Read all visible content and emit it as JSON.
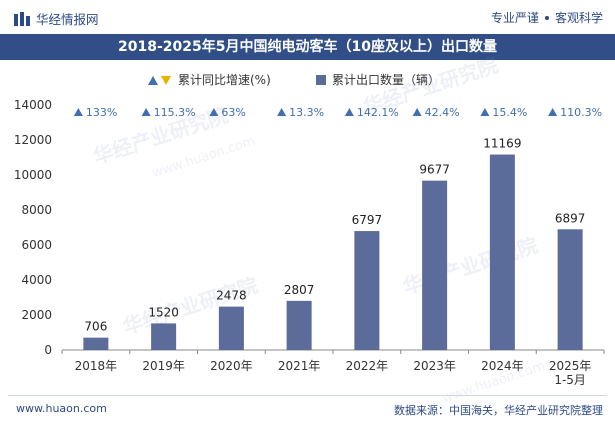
{
  "header": {
    "brand": "华经情报网",
    "tagline_left": "专业严谨",
    "tagline_right": "客观科学"
  },
  "title": "2018-2025年5月中国纯电动客车（10座及以上）出口数量",
  "legend": {
    "growth_label": "累计同比增速(%)",
    "volume_label": "累计出口数量（辆）"
  },
  "footer": {
    "website": "www.huaon.com",
    "source": "数据来源：中国海关，华经产业研究院整理"
  },
  "watermark": {
    "text": "华经产业研究院",
    "url": "www.huaon.com"
  },
  "colors": {
    "bar": "#5b6b9a",
    "title_bg": "#314f86",
    "growth_up": "#3f6fb0",
    "growth_down": "#e8b400",
    "axis": "#888888"
  },
  "chart_data": {
    "type": "bar",
    "categories": [
      "2018年",
      "2019年",
      "2020年",
      "2021年",
      "2022年",
      "2023年",
      "2024年",
      "2025年\n1-5月"
    ],
    "series": [
      {
        "name": "累计出口数量（辆）",
        "values": [
          706,
          1520,
          2478,
          2807,
          6797,
          9677,
          11169,
          6897
        ],
        "labels": [
          "706",
          "1520",
          "2478",
          "2807",
          "6797",
          "9677",
          "11169",
          "6897"
        ]
      },
      {
        "name": "累计同比增速(%)",
        "values": [
          133,
          115.3,
          63,
          13.3,
          142.1,
          42.4,
          15.4,
          110.3
        ],
        "labels": [
          "133%",
          "115.3%",
          "63%",
          "13.3%",
          "142.1%",
          "42.4%",
          "15.4%",
          "110.3%"
        ]
      }
    ],
    "ylim": [
      0,
      14000
    ],
    "yticks": [
      0,
      2000,
      4000,
      6000,
      8000,
      10000,
      12000,
      14000
    ],
    "grid": false,
    "legend_position": "top-center"
  }
}
